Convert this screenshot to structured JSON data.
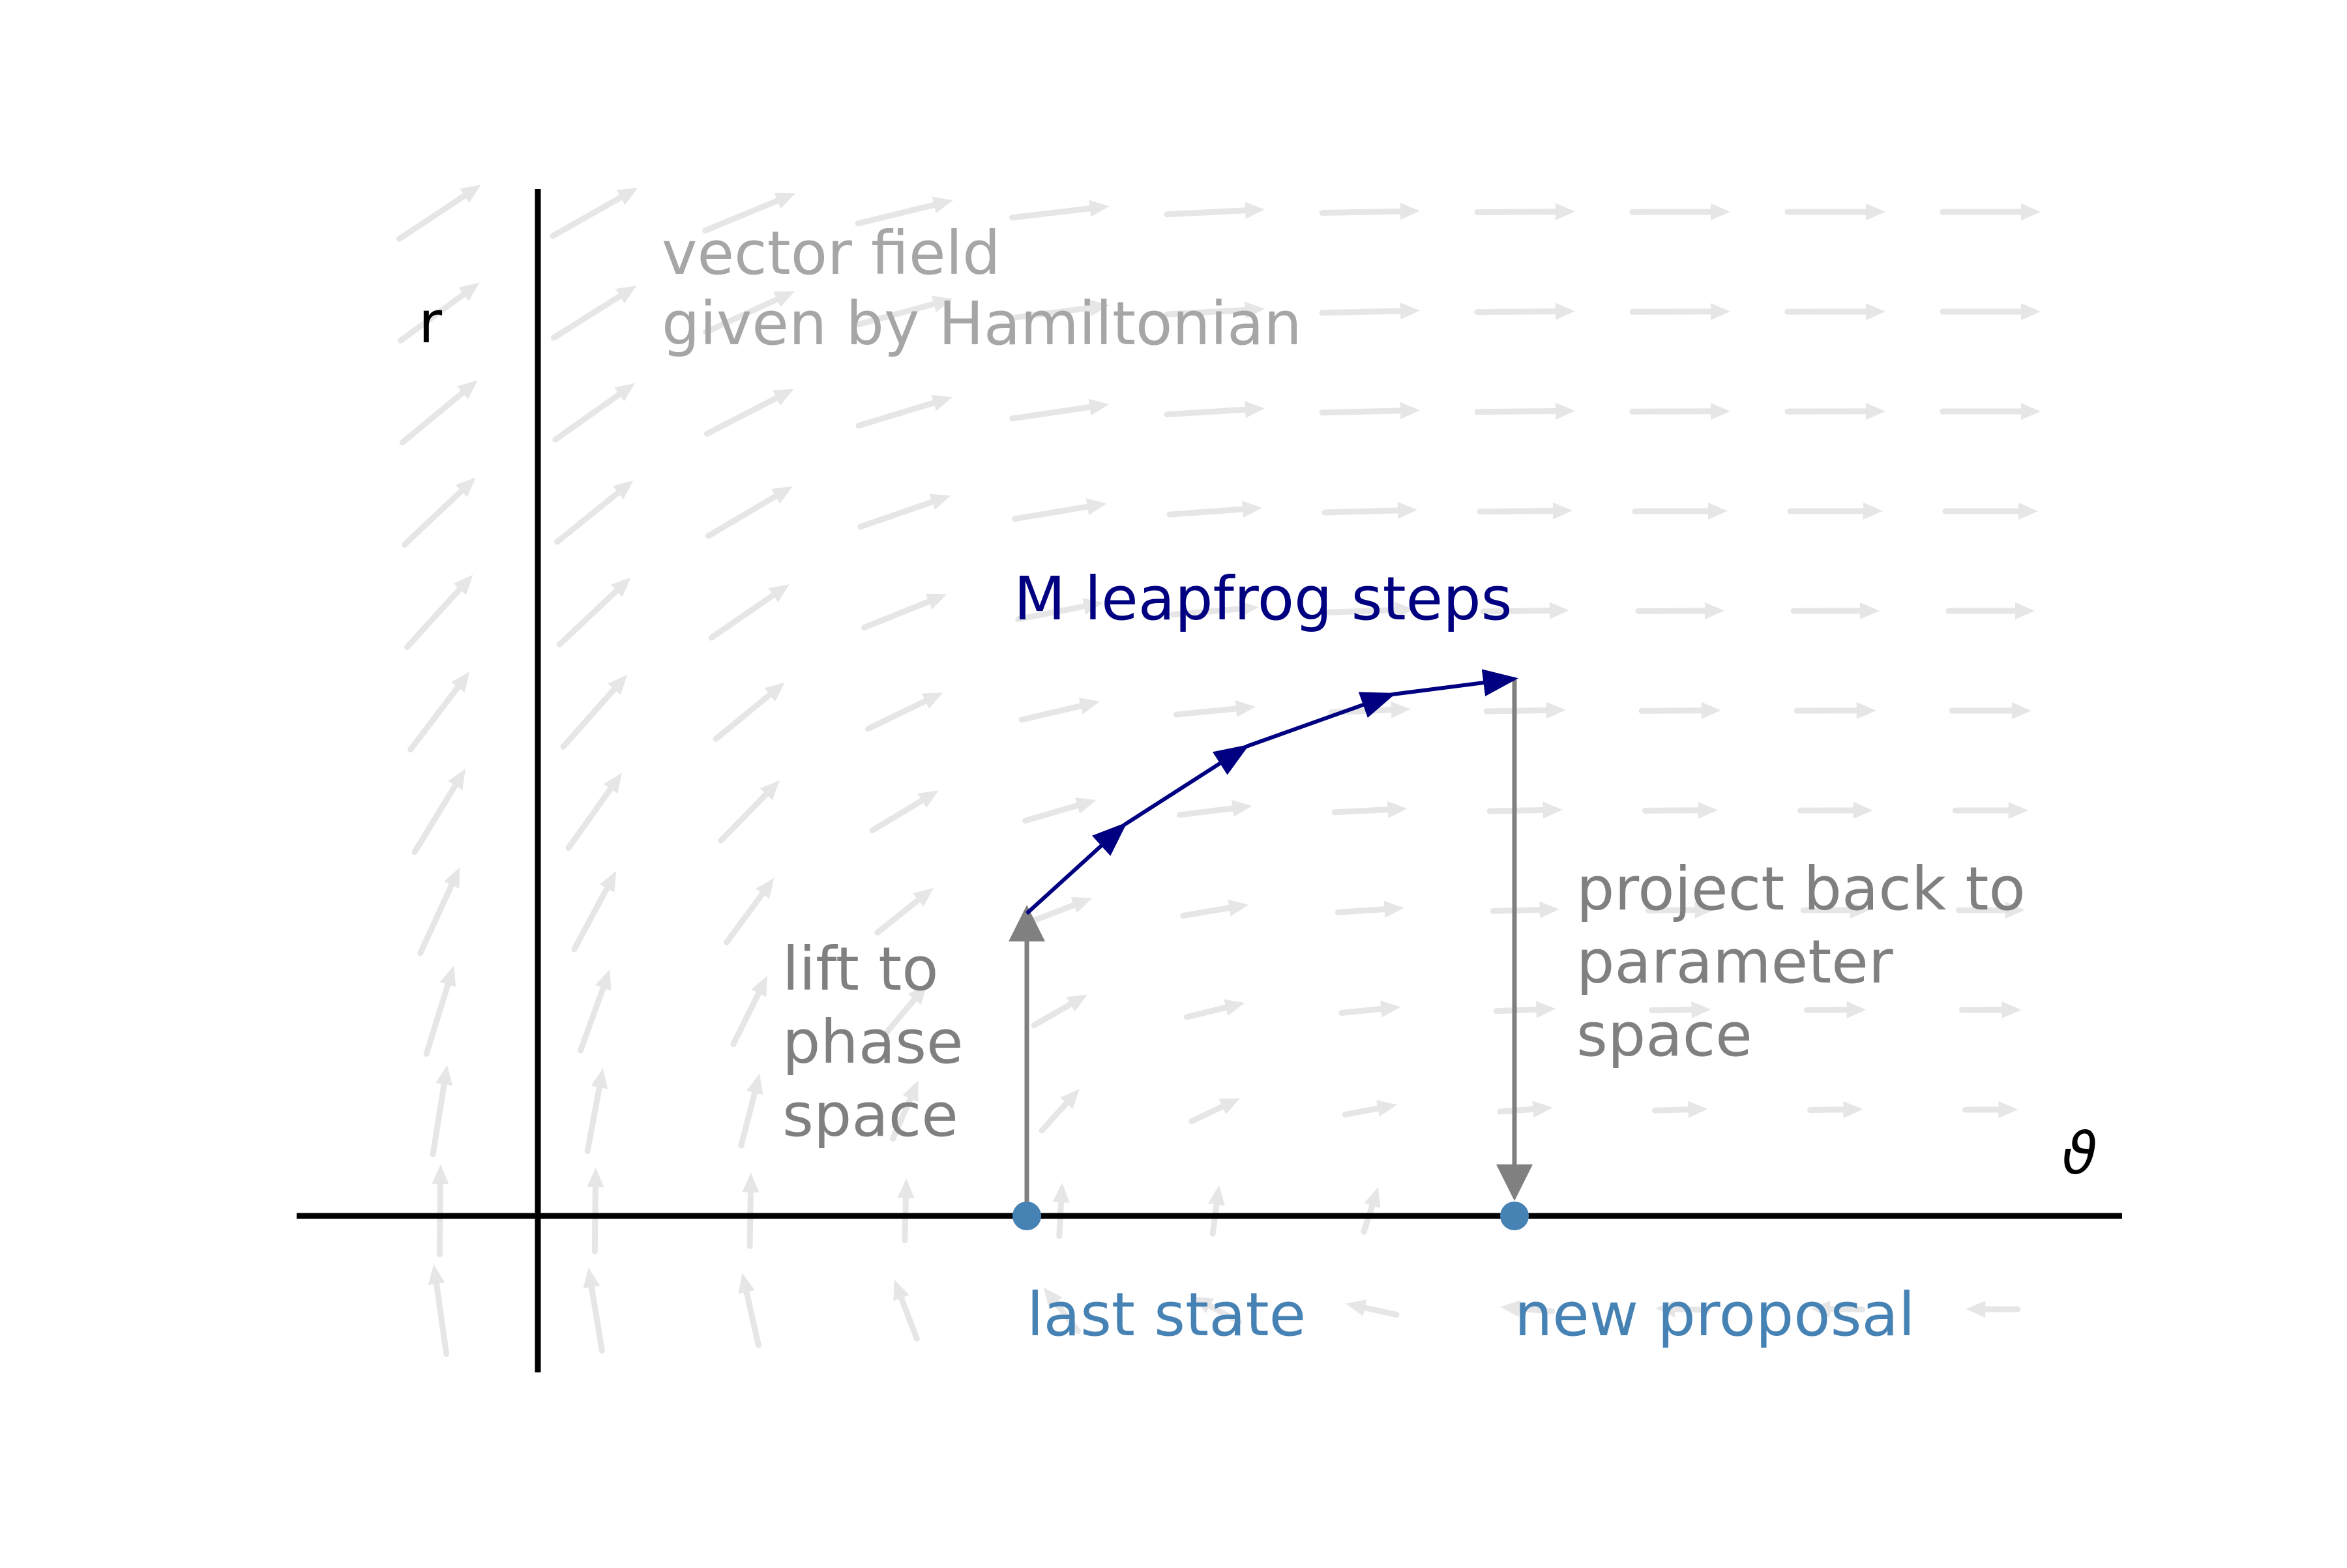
{
  "axes": {
    "x_label": "ϑ",
    "y_label": "r"
  },
  "labels": {
    "vector_field_line1": "vector field",
    "vector_field_line2": "given by Hamiltonian",
    "leapfrog": "M leapfrog steps",
    "lift_line1": "lift to",
    "lift_line2": "phase",
    "lift_line3": "space",
    "project_line1": "project back to",
    "project_line2": "parameter",
    "project_line3": "space",
    "last_state": "last state",
    "new_proposal": "new proposal"
  },
  "colors": {
    "field": "#e6e6e6",
    "field_text": "#a6a6a6",
    "axis": "#000000",
    "projection": "#808080",
    "trajectory": "#000080",
    "points": "#4682b4"
  },
  "trajectory": [
    [
      0,
      0.58
    ],
    [
      0.2,
      0.75
    ],
    [
      0.45,
      0.9
    ],
    [
      0.75,
      1.0
    ],
    [
      1.0,
      1.03
    ]
  ]
}
